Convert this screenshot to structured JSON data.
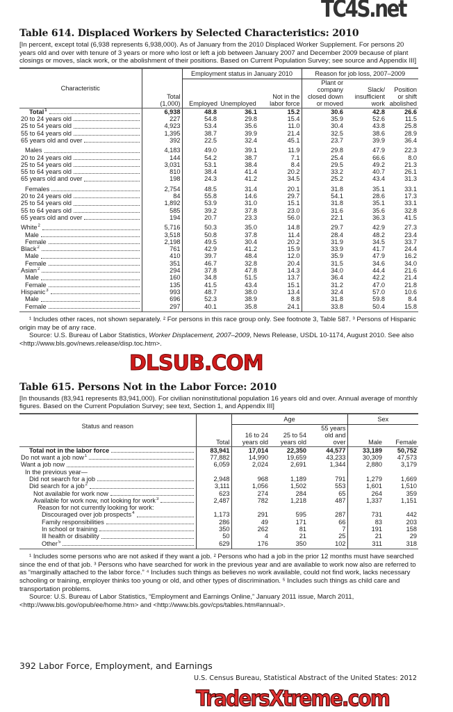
{
  "watermarks": {
    "top": "TC4S.net",
    "middle": "DLSUB.COM",
    "bottom": "TradersXtreme.com"
  },
  "table614": {
    "title": "Table 614. Displaced Workers by Selected Characteristics: 2010",
    "intro": "[In percent, except total (6,938 represents 6,938,000). As of January from the 2010 Displaced Worker Supplement. For persons 20 years old and over with tenure of 3 years or more who lost or left a job between January 2007 and December 2009 because of plant closings or moves, slack work, or the abolishment of their positions. Based on Current Population Survey; see source and Appendix III]",
    "header": {
      "characteristic": "Characteristic",
      "total": "Total",
      "total_unit": "(1,000)",
      "group_employment": "Employment status in January 2010",
      "group_reason": "Reason for job loss, 2007–2009",
      "employed": "Employed",
      "unemployed": "Unemployed",
      "not_in_lf": [
        "Not in the",
        "labor force"
      ],
      "plant": [
        "Plant or",
        "company",
        "closed down",
        "or moved"
      ],
      "slack": [
        "Slack/",
        "insufficient",
        "work"
      ],
      "position": [
        "Position",
        "or shift",
        "abolished"
      ]
    },
    "rows": [
      {
        "label": "Total",
        "sup": "1",
        "indent": 2,
        "bold": true,
        "values": [
          "6,938",
          "48.8",
          "36.1",
          "15.2",
          "30.6",
          "42.8",
          "26.6"
        ]
      },
      {
        "label": "20 to 24 years old",
        "indent": 0,
        "values": [
          "227",
          "54.8",
          "29.8",
          "15.4",
          "35.9",
          "52.6",
          "11.5"
        ]
      },
      {
        "label": "25 to 54 years old",
        "indent": 0,
        "values": [
          "4,923",
          "53.4",
          "35.6",
          "11.0",
          "30.4",
          "43.8",
          "25.8"
        ]
      },
      {
        "label": "55 to 64 years old",
        "indent": 0,
        "values": [
          "1,395",
          "38.7",
          "39.9",
          "21.4",
          "32.5",
          "38.6",
          "28.9"
        ]
      },
      {
        "label": "65 years old and over",
        "indent": 0,
        "values": [
          "392",
          "22.5",
          "32.4",
          "45.1",
          "23.7",
          "39.9",
          "36.4"
        ]
      },
      {
        "label": "Males",
        "indent": 1,
        "gap": true,
        "values": [
          "4,183",
          "49.0",
          "39.1",
          "11.9",
          "29.8",
          "47.9",
          "22.3"
        ]
      },
      {
        "label": "20 to 24 years old",
        "indent": 0,
        "values": [
          "144",
          "54.2",
          "38.7",
          "7.1",
          "25.4",
          "66.6",
          "8.0"
        ]
      },
      {
        "label": "25 to 54 years old",
        "indent": 0,
        "values": [
          "3,031",
          "53.1",
          "38.4",
          "8.4",
          "29.5",
          "49.2",
          "21.3"
        ]
      },
      {
        "label": "55 to 64 years old",
        "indent": 0,
        "values": [
          "810",
          "38.4",
          "41.4",
          "20.2",
          "33.2",
          "40.7",
          "26.1"
        ]
      },
      {
        "label": "65 years old and over",
        "indent": 0,
        "values": [
          "198",
          "24.3",
          "41.2",
          "34.5",
          "25.2",
          "43.4",
          "31.3"
        ]
      },
      {
        "label": "Females",
        "indent": 1,
        "gap": true,
        "values": [
          "2,754",
          "48.5",
          "31.4",
          "20.1",
          "31.8",
          "35.1",
          "33.1"
        ]
      },
      {
        "label": "20 to 24 years old",
        "indent": 0,
        "values": [
          "84",
          "55.8",
          "14.6",
          "29.7",
          "54.1",
          "28.6",
          "17.3"
        ]
      },
      {
        "label": "25 to 54 years old",
        "indent": 0,
        "values": [
          "1,892",
          "53.9",
          "31.0",
          "15.1",
          "31.8",
          "35.1",
          "33.1"
        ]
      },
      {
        "label": "55 to 64 years old",
        "indent": 0,
        "values": [
          "585",
          "39.2",
          "37.8",
          "23.0",
          "31.6",
          "35.6",
          "32.8"
        ]
      },
      {
        "label": "65 years old and over",
        "indent": 0,
        "values": [
          "194",
          "20.7",
          "23.3",
          "56.0",
          "22.1",
          "36.3",
          "41.5"
        ]
      },
      {
        "label": "White",
        "sup": "2",
        "indent": 0,
        "gap": true,
        "values": [
          "5,716",
          "50.3",
          "35.0",
          "14.8",
          "29.7",
          "42.9",
          "27.3"
        ]
      },
      {
        "label": "Male",
        "indent": 1,
        "values": [
          "3,518",
          "50.8",
          "37.8",
          "11.4",
          "28.4",
          "48.2",
          "23.4"
        ]
      },
      {
        "label": "Female",
        "indent": 1,
        "values": [
          "2,198",
          "49.5",
          "30.4",
          "20.2",
          "31.9",
          "34.5",
          "33.7"
        ]
      },
      {
        "label": "Black",
        "sup": "2",
        "indent": 0,
        "values": [
          "761",
          "42.9",
          "41.2",
          "15.9",
          "33.9",
          "41.7",
          "24.4"
        ]
      },
      {
        "label": "Male",
        "indent": 1,
        "values": [
          "410",
          "39.7",
          "48.4",
          "12.0",
          "35.9",
          "47.9",
          "16.2"
        ]
      },
      {
        "label": "Female",
        "indent": 1,
        "values": [
          "351",
          "46.7",
          "32.8",
          "20.4",
          "31.5",
          "34.6",
          "34.0"
        ]
      },
      {
        "label": "Asian",
        "sup": "2",
        "indent": 0,
        "values": [
          "294",
          "37.8",
          "47.8",
          "14.3",
          "34.0",
          "44.4",
          "21.6"
        ]
      },
      {
        "label": "Male",
        "indent": 1,
        "values": [
          "160",
          "34.8",
          "51.5",
          "13.7",
          "36.4",
          "42.2",
          "21.4"
        ]
      },
      {
        "label": "Female",
        "indent": 1,
        "values": [
          "135",
          "41.5",
          "43.4",
          "15.1",
          "31.2",
          "47.0",
          "21.8"
        ]
      },
      {
        "label": "Hispanic",
        "sup": "3",
        "indent": 0,
        "values": [
          "993",
          "48.7",
          "38.0",
          "13.4",
          "32.4",
          "57.0",
          "10.6"
        ]
      },
      {
        "label": "Male",
        "indent": 1,
        "values": [
          "696",
          "52.3",
          "38.9",
          "8.8",
          "31.8",
          "59.8",
          "8.4"
        ]
      },
      {
        "label": "Female",
        "indent": 1,
        "values": [
          "297",
          "40.1",
          "35.8",
          "24.1",
          "33.8",
          "50.4",
          "15.8"
        ]
      }
    ],
    "footnote": "¹ Includes other races, not shown separately. ² For persons in this race group only. See footnote 3, Table 587. ³ Persons of Hispanic origin may be of any race.",
    "source_prefix": "Source: U.S. Bureau of Labor Statistics, ",
    "source_title": "Worker Displacement, 2007–2009",
    "source_suffix": ", News Release, USDL 10-1174, August 2010. See also <http://www.bls.gov/news.release/disp.toc.htm>."
  },
  "table615": {
    "title": "Table 615. Persons Not in the Labor Force: 2010",
    "intro": "[In thousands (83,941 represents 83,941,000). For civilian noninstitutional population 16 years old and over. Annual average of monthly figures. Based on the Current Population Survey; see text, Section 1, and Appendix III]",
    "header": {
      "status": "Status and reason",
      "total": "Total",
      "group_age": "Age",
      "group_sex": "Sex",
      "age1": [
        "16 to 24",
        "years old"
      ],
      "age2": [
        "25 to 54",
        "years old"
      ],
      "age3": [
        "55 years",
        "old and",
        "over"
      ],
      "male": "Male",
      "female": "Female"
    },
    "rows": [
      {
        "label": "Total not in the labor force",
        "indent": 2,
        "bold": true,
        "values": [
          "83,941",
          "17,014",
          "22,350",
          "44,577",
          "33,189",
          "50,752"
        ]
      },
      {
        "label": "Do not want a job now",
        "sup": "1",
        "indent": 0,
        "values": [
          "77,882",
          "14,990",
          "19,659",
          "43,233",
          "30,309",
          "47,573"
        ]
      },
      {
        "label": "Want a job now",
        "indent": 0,
        "values": [
          "6,059",
          "2,024",
          "2,691",
          "1,344",
          "2,880",
          "3,179"
        ]
      },
      {
        "label": "In the previous year—",
        "indent": 1,
        "nodots": true,
        "values": [
          "",
          "",
          "",
          "",
          "",
          ""
        ]
      },
      {
        "label": "Did not search for a job",
        "indent": 2,
        "values": [
          "2,948",
          "968",
          "1,189",
          "791",
          "1,279",
          "1,669"
        ]
      },
      {
        "label": "Did search for a job",
        "sup": "2",
        "indent": 2,
        "values": [
          "3,111",
          "1,056",
          "1,502",
          "553",
          "1,601",
          "1,510"
        ]
      },
      {
        "label": "Not available for work now",
        "indent": 3,
        "values": [
          "623",
          "274",
          "284",
          "65",
          "264",
          "359"
        ]
      },
      {
        "label": "Available for work now, not looking for work",
        "sup": "3",
        "indent": 3,
        "values": [
          "2,487",
          "782",
          "1,218",
          "487",
          "1,337",
          "1,151"
        ]
      },
      {
        "label": "Reason for not currently looking for work:",
        "indent": 4,
        "nodots": true,
        "values": [
          "",
          "",
          "",
          "",
          "",
          ""
        ]
      },
      {
        "label": "Discouraged over job prospects",
        "sup": "4",
        "indent": 5,
        "values": [
          "1,173",
          "291",
          "595",
          "287",
          "731",
          "442"
        ]
      },
      {
        "label": "Family responsibilities",
        "indent": 5,
        "values": [
          "286",
          "49",
          "171",
          "66",
          "83",
          "203"
        ]
      },
      {
        "label": "In school or training",
        "indent": 5,
        "values": [
          "350",
          "262",
          "81",
          "7",
          "191",
          "158"
        ]
      },
      {
        "label": "Ill health or disability",
        "indent": 5,
        "values": [
          "50",
          "4",
          "21",
          "25",
          "21",
          "29"
        ]
      },
      {
        "label": "Other",
        "sup": "5",
        "indent": 5,
        "values": [
          "629",
          "176",
          "350",
          "102",
          "311",
          "318"
        ]
      }
    ],
    "footnote": "¹ Includes some persons who are not asked if they want a job. ² Persons who had a job in the prior 12 months must have searched since the end of that job. ³ Persons who have searched for work in the previous year and are available to work now also are referred to as “marginally attached to the labor force.” ⁴ Includes such things as believes no work available, could not find work, lacks necessary schooling or training, employer thinks too young or old, and other types of discrimination. ⁵ Includes such things as child care and transportation problems.",
    "source": "Source: U.S. Bureau of Labor Statistics, “Employment and Earnings Online,” January 2011 issue, March 2011, <http://www.bls.gov/opub/ee/home.htm> and <http://www.bls.gov/cps/tables.htm#annual>."
  },
  "page_footer": {
    "page": "392  Labor Force, Employment, and Earnings",
    "publication": "U.S. Census Bureau, Statistical Abstract of the United States: 2012"
  }
}
